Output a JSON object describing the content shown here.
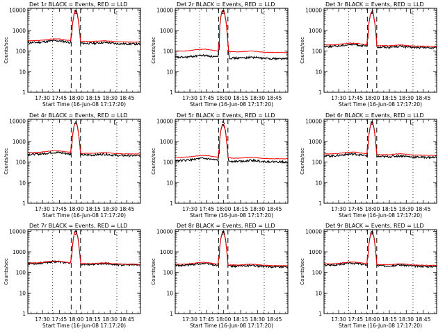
{
  "chart_data": [
    {
      "title": "Det 1r BLACK = Events, RED = LLD",
      "type": "line",
      "black_base": 260,
      "red_base": 320,
      "peak": 9000,
      "marker": "1"
    },
    {
      "title": "Det 2r BLACK = Events, RED = LLD",
      "type": "line",
      "black_base": 50,
      "red_base": 100,
      "peak": 9500,
      "marker": "2"
    },
    {
      "title": "Det 3r BLACK = Events, RED = LLD",
      "type": "line",
      "black_base": 170,
      "red_base": 200,
      "peak": 8000,
      "marker": "3"
    },
    {
      "title": "Det 4r BLACK = Events, RED = LLD",
      "type": "line",
      "black_base": 240,
      "red_base": 290,
      "peak": 8500,
      "marker": "4"
    },
    {
      "title": "Det 5r BLACK = Events, RED = LLD",
      "type": "line",
      "black_base": 120,
      "red_base": 170,
      "peak": 7000,
      "marker": "5"
    },
    {
      "title": "Det 6r BLACK = Events, RED = LLD",
      "type": "line",
      "black_base": 200,
      "red_base": 250,
      "peak": 8000,
      "marker": "6"
    },
    {
      "title": "Det 7r BLACK = Events, RED = LLD",
      "type": "line",
      "black_base": 270,
      "red_base": 290,
      "peak": 9500,
      "marker": "7"
    },
    {
      "title": "Det 8r BLACK = Events, RED = LLD",
      "type": "line",
      "black_base": 220,
      "red_base": 250,
      "peak": 9000,
      "marker": "8"
    },
    {
      "title": "Det 9r BLACK = Events, RED = LLD",
      "type": "line",
      "black_base": 230,
      "red_base": 260,
      "peak": 9000,
      "marker": "9"
    }
  ],
  "common": {
    "ylabel": "Counts/sec",
    "xlabel": "Start Time (16-Jun-08 17:17:20)",
    "x_ticks": [
      "17:30",
      "17:45",
      "18:00",
      "18:15",
      "18:30",
      "18:45"
    ],
    "x_tick_minutes": [
      30,
      45,
      60,
      75,
      90,
      105
    ],
    "x_range_minutes": [
      17,
      117
    ],
    "y_ticks": [
      "1",
      "10",
      "100",
      "1000",
      "10000"
    ],
    "y_range": [
      1,
      12000
    ],
    "y_scale": "log",
    "flare_start_minutes": 55.5,
    "flare_end_minutes": 63.8,
    "dotted_lines_minutes": [
      39,
      96
    ],
    "colors": {
      "events": "#000000",
      "lld": "#ff0000",
      "background": "#ffffff"
    }
  }
}
